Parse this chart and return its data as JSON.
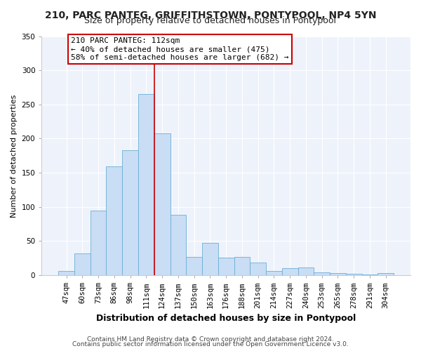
{
  "title": "210, PARC PANTEG, GRIFFITHSTOWN, PONTYPOOL, NP4 5YN",
  "subtitle": "Size of property relative to detached houses in Pontypool",
  "xlabel": "Distribution of detached houses by size in Pontypool",
  "ylabel": "Number of detached properties",
  "bar_labels": [
    "47sqm",
    "60sqm",
    "73sqm",
    "86sqm",
    "98sqm",
    "111sqm",
    "124sqm",
    "137sqm",
    "150sqm",
    "163sqm",
    "176sqm",
    "188sqm",
    "201sqm",
    "214sqm",
    "227sqm",
    "240sqm",
    "253sqm",
    "265sqm",
    "278sqm",
    "291sqm",
    "304sqm"
  ],
  "bar_values": [
    6,
    32,
    95,
    159,
    183,
    265,
    208,
    89,
    27,
    47,
    26,
    27,
    19,
    6,
    10,
    11,
    4,
    3,
    2,
    1,
    3
  ],
  "bar_color": "#c9ddf5",
  "bar_edge_color": "#6baed6",
  "vline_color": "#cc0000",
  "vline_index": 5,
  "ylim": [
    0,
    350
  ],
  "yticks": [
    0,
    50,
    100,
    150,
    200,
    250,
    300,
    350
  ],
  "annotation_title": "210 PARC PANTEG: 112sqm",
  "annotation_line1": "← 40% of detached houses are smaller (475)",
  "annotation_line2": "58% of semi-detached houses are larger (682) →",
  "footer1": "Contains HM Land Registry data © Crown copyright and database right 2024.",
  "footer2": "Contains public sector information licensed under the Open Government Licence v3.0.",
  "bg_color": "#ffffff",
  "plot_bg_color": "#eef3fb",
  "title_fontsize": 10,
  "subtitle_fontsize": 9,
  "xlabel_fontsize": 9,
  "ylabel_fontsize": 8,
  "tick_fontsize": 7.5,
  "annotation_fontsize": 8,
  "footer_fontsize": 6.5
}
